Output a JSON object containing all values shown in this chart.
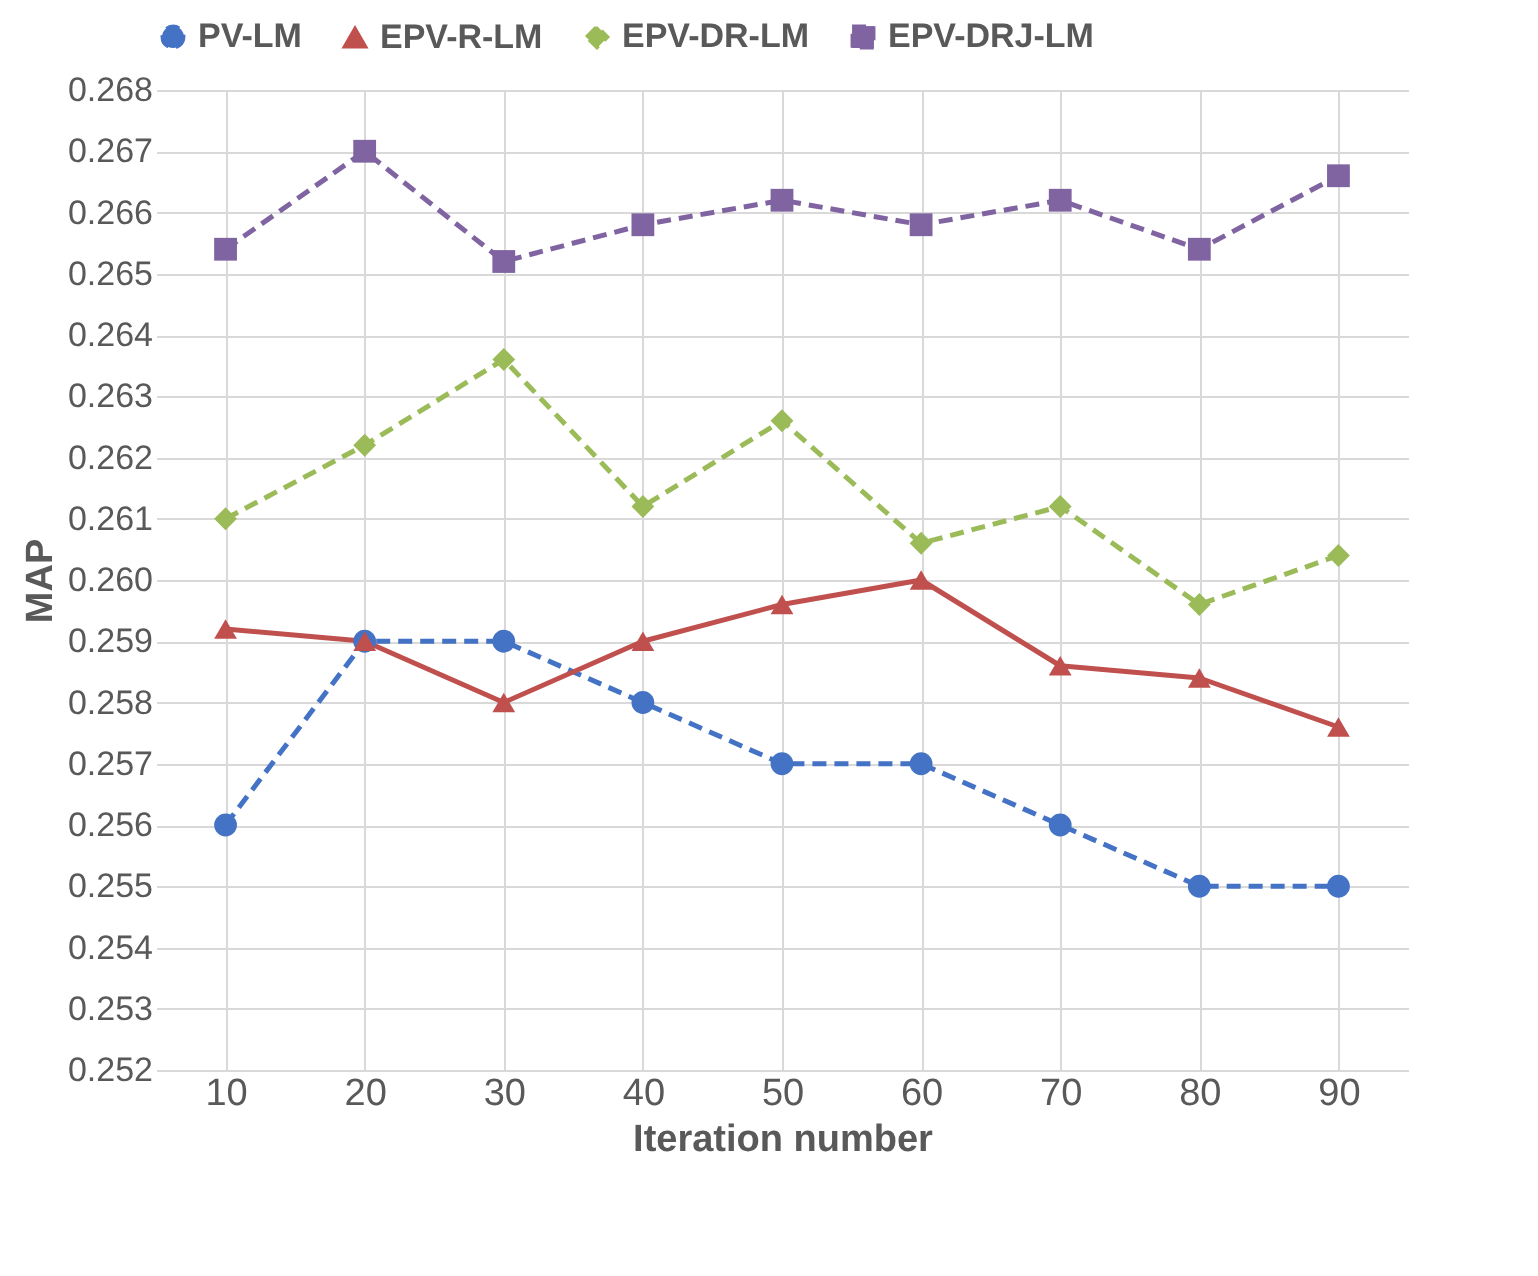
{
  "chart_data": {
    "type": "line",
    "xlabel": "Iteration number",
    "ylabel": "MAP",
    "categories": [
      "10",
      "20",
      "30",
      "40",
      "50",
      "60",
      "70",
      "80",
      "90"
    ],
    "ylim": [
      0.252,
      0.268
    ],
    "yticks": [
      0.252,
      0.253,
      0.254,
      0.255,
      0.256,
      0.257,
      0.258,
      0.259,
      {
        "value": 0.26,
        "label": "0.260"
      },
      0.261,
      0.262,
      0.263,
      0.264,
      0.265,
      0.266,
      0.267,
      0.268
    ],
    "grid": true,
    "legend": "top",
    "series": [
      {
        "name": "PV-LM",
        "color": "#4472c4",
        "marker": "circle",
        "line_style": "dashed",
        "values": [
          0.256,
          0.259,
          0.259,
          0.258,
          0.257,
          0.257,
          0.256,
          0.255,
          0.255
        ]
      },
      {
        "name": "EPV-R-LM",
        "color": "#c0504d",
        "marker": "triangle",
        "line_style": "solid",
        "values": [
          0.2592,
          0.259,
          0.258,
          0.259,
          0.2596,
          0.26,
          0.2586,
          0.2584,
          0.2576
        ]
      },
      {
        "name": "EPV-DR-LM",
        "color": "#9bbb59",
        "marker": "diamond",
        "line_style": "dashed",
        "values": [
          0.261,
          0.2622,
          0.2636,
          0.2612,
          0.2626,
          0.2606,
          0.2612,
          0.2596,
          0.2604
        ]
      },
      {
        "name": "EPV-DRJ-LM",
        "color": "#8064a2",
        "marker": "square",
        "line_style": "dashed",
        "values": [
          0.2654,
          0.267,
          0.2652,
          0.2658,
          0.2662,
          0.2658,
          0.2662,
          0.2654,
          0.2666
        ]
      }
    ]
  }
}
